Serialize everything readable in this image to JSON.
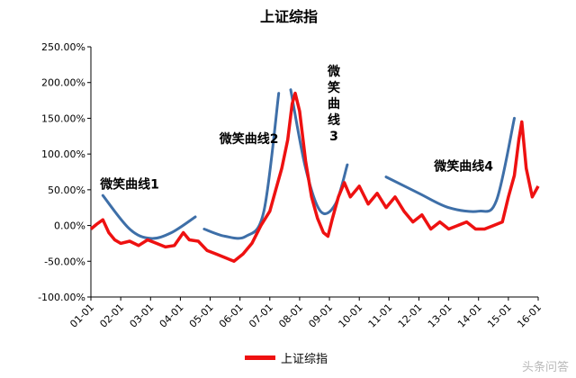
{
  "chart_data": {
    "type": "line",
    "title": "上证综指",
    "ylim": [
      -100,
      250
    ],
    "yticks": [
      -100,
      -50,
      0,
      50,
      100,
      150,
      200,
      250
    ],
    "ytick_labels": [
      "-100.00%",
      "-50.00%",
      "0.00%",
      "50.00%",
      "100.00%",
      "150.00%",
      "200.00%",
      "250.00%"
    ],
    "xlim": [
      2001.0,
      2016.0
    ],
    "xtick_values": [
      2001,
      2002,
      2003,
      2004,
      2005,
      2006,
      2007,
      2008,
      2009,
      2010,
      2011,
      2012,
      2013,
      2014,
      2015,
      2016
    ],
    "xtick_labels": [
      "01-01",
      "02-01",
      "03-01",
      "04-01",
      "05-01",
      "06-01",
      "07-01",
      "08-01",
      "09-01",
      "10-01",
      "11-01",
      "12-01",
      "13-01",
      "14-01",
      "15-01",
      "16-01"
    ],
    "grid": false,
    "legend_position": "bottom",
    "series": [
      {
        "name": "上证综指",
        "color": "#ee1111",
        "x": [
          2001.0,
          2001.2,
          2001.4,
          2001.6,
          2001.8,
          2002.0,
          2002.3,
          2002.6,
          2002.9,
          2003.2,
          2003.5,
          2003.8,
          2004.1,
          2004.3,
          2004.6,
          2004.9,
          2005.2,
          2005.5,
          2005.8,
          2006.1,
          2006.4,
          2006.7,
          2007.0,
          2007.2,
          2007.4,
          2007.6,
          2007.75,
          2007.85,
          2008.0,
          2008.2,
          2008.4,
          2008.6,
          2008.8,
          2008.95,
          2009.1,
          2009.3,
          2009.5,
          2009.7,
          2010.0,
          2010.3,
          2010.6,
          2010.9,
          2011.2,
          2011.5,
          2011.8,
          2012.1,
          2012.4,
          2012.7,
          2013.0,
          2013.3,
          2013.6,
          2013.9,
          2014.2,
          2014.5,
          2014.8,
          2015.0,
          2015.2,
          2015.35,
          2015.45,
          2015.6,
          2015.8,
          2016.0
        ],
        "values": [
          -5,
          2,
          8,
          -10,
          -20,
          -25,
          -22,
          -28,
          -20,
          -25,
          -30,
          -28,
          -10,
          -20,
          -22,
          -35,
          -40,
          -45,
          -50,
          -40,
          -25,
          0,
          20,
          50,
          80,
          120,
          170,
          185,
          160,
          90,
          40,
          10,
          -10,
          -15,
          10,
          40,
          60,
          40,
          55,
          30,
          45,
          25,
          40,
          20,
          5,
          15,
          -5,
          5,
          -5,
          0,
          5,
          -5,
          -5,
          0,
          5,
          40,
          70,
          120,
          145,
          80,
          40,
          55
        ]
      }
    ],
    "annotations": [
      {
        "text": "微笑曲线1",
        "x": 2002.3,
        "y": 52,
        "orientation": "horizontal"
      },
      {
        "text": "微笑曲线2",
        "x": 2006.3,
        "y": 115,
        "orientation": "horizontal"
      },
      {
        "text": "微笑曲线3",
        "x": 2009.15,
        "y": 210,
        "orientation": "vertical"
      },
      {
        "text": "微笑曲线4",
        "x": 2013.5,
        "y": 77,
        "orientation": "horizontal"
      }
    ],
    "smile_curves": [
      {
        "color": "#3e6fa8",
        "x": [
          2001.4,
          2002.3,
          2003.0,
          2003.7,
          2004.5
        ],
        "values": [
          42,
          -5,
          -18,
          -10,
          12
        ]
      },
      {
        "color": "#3e6fa8",
        "x": [
          2004.8,
          2005.5,
          2006.2,
          2006.8,
          2007.3
        ],
        "values": [
          -5,
          -15,
          -15,
          20,
          185
        ]
      },
      {
        "color": "#3e6fa8",
        "x": [
          2007.7,
          2008.2,
          2008.7,
          2009.2,
          2009.6
        ],
        "values": [
          190,
          80,
          20,
          30,
          85
        ]
      },
      {
        "color": "#3e6fa8",
        "x": [
          2010.9,
          2012.0,
          2013.0,
          2014.0,
          2014.6,
          2015.2
        ],
        "values": [
          68,
          45,
          25,
          20,
          35,
          150
        ]
      }
    ]
  },
  "watermark": "头条问答"
}
